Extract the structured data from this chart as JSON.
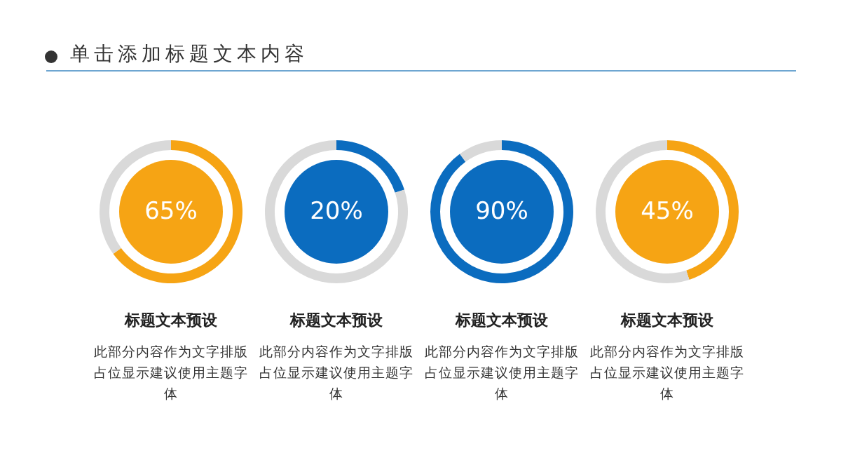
{
  "chart_data": [
    {
      "type": "donut",
      "title": "标题文本预设",
      "annotations": [
        "单击添加标题文本内容",
        "65%",
        "此部分内容作为文字排版占位显示建议使用主题字体"
      ],
      "categories": [
        null,
        null
      ],
      "values": [
        65,
        35
      ],
      "colors": [
        "#f6a414",
        "#d9d9d9"
      ]
    },
    {
      "type": "donut",
      "title": "标题文本预设",
      "annotations": [
        "20%",
        "此部分内容作为文字排版占位显示建议使用主题字体"
      ],
      "categories": [
        null,
        null
      ],
      "values": [
        20,
        80
      ],
      "colors": [
        "#0b6cbf",
        "#d9d9d9"
      ]
    },
    {
      "type": "donut",
      "title": "标题文本预设",
      "annotations": [
        "90%",
        "此部分内容作为文字排版占位显示建议使用主题字体"
      ],
      "categories": [
        null,
        null
      ],
      "values": [
        90,
        10
      ],
      "colors": [
        "#0b6cbf",
        "#d9d9d9"
      ]
    },
    {
      "type": "donut",
      "title": "标题文本预设",
      "annotations": [
        "45%",
        "此部分内容作为文字排版占位显示建议使用主题字体"
      ],
      "categories": [
        null,
        null
      ],
      "values": [
        45,
        55
      ],
      "colors": [
        "#f6a414",
        "#d9d9d9"
      ]
    }
  ]
}
